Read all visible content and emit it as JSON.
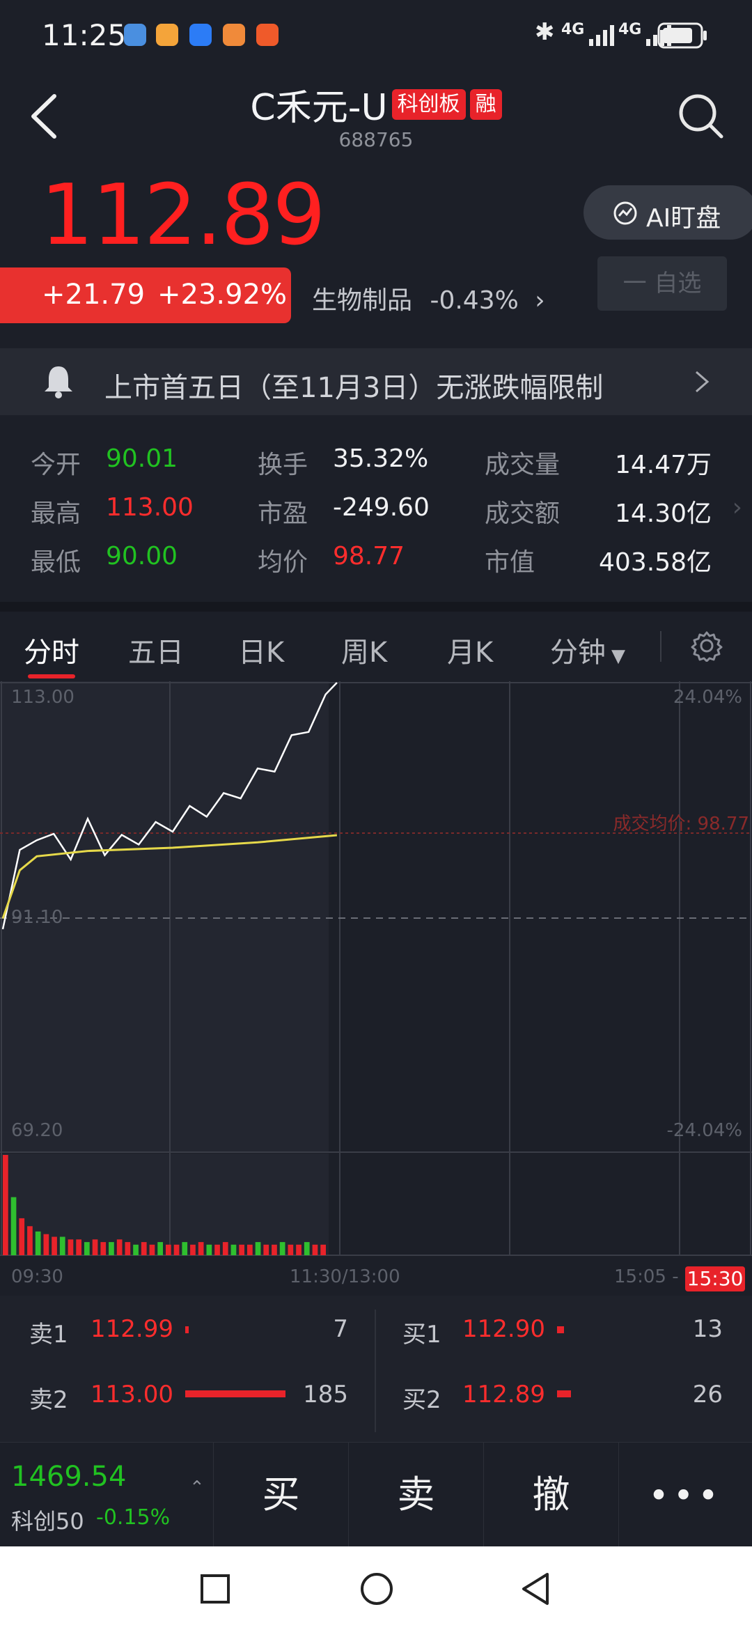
{
  "status_bar": {
    "time": "11:25",
    "network_1": "4G",
    "network_2": "4G"
  },
  "header": {
    "stock_name": "C禾元-U",
    "tag_board": "科创板",
    "tag_margin": "融",
    "stock_code": "688765"
  },
  "quote": {
    "price": "112.89",
    "change": "+21.79",
    "change_pct": "+23.92%",
    "sector_name": "生物制品",
    "sector_change": "-0.43%",
    "ai_button": "AI盯盘",
    "watchlist_button": "一 自选"
  },
  "notice": {
    "text": "上市首五日（至11月3日）无涨跌幅限制"
  },
  "stats": [
    {
      "label": "今开",
      "value": "90.01",
      "color": "green"
    },
    {
      "label": "换手",
      "value": "35.32%",
      "color": "white"
    },
    {
      "label": "成交量",
      "value": "14.47万",
      "color": "white"
    },
    {
      "label": "最高",
      "value": "113.00",
      "color": "red"
    },
    {
      "label": "市盈",
      "value": "-249.60",
      "color": "white"
    },
    {
      "label": "成交额",
      "value": "14.30亿",
      "color": "white"
    },
    {
      "label": "最低",
      "value": "90.00",
      "color": "green"
    },
    {
      "label": "均价",
      "value": "98.77",
      "color": "red"
    },
    {
      "label": "市值",
      "value": "403.58亿",
      "color": "white"
    }
  ],
  "tabs": [
    "分时",
    "五日",
    "日K",
    "周K",
    "月K",
    "分钟"
  ],
  "chart_labels": {
    "y_top": "113.00",
    "y_mid": "91.10",
    "y_bottom": "69.20",
    "pct_top": "24.04%",
    "pct_bottom": "-24.04%",
    "avg_price_label": "成交均价: 98.77",
    "t_start": "09:30",
    "t_mid": "11:30/13:00",
    "t_end": "15:05 -",
    "t_current": "15:30"
  },
  "chart_data": {
    "type": "line",
    "title": "",
    "ylim": [
      69.2,
      113.0
    ],
    "reference_price": 91.1,
    "series": [
      {
        "name": "",
        "color": "#ffffff",
        "x": [
          0,
          6,
          12,
          18,
          24,
          30,
          36,
          42,
          48,
          54,
          60,
          66,
          72,
          78,
          84,
          90,
          96,
          102,
          108,
          114,
          118
        ],
        "y": [
          90.0,
          96.5,
          99.0,
          98.0,
          97.2,
          99.4,
          97.6,
          97.9,
          98.6,
          99.1,
          99.8,
          100.6,
          101.2,
          101.8,
          102.9,
          104.1,
          105.4,
          107.2,
          109.1,
          111.0,
          113.0
        ]
      },
      {
        "name": "成交均价",
        "color": "#e6d94a",
        "x": [
          0,
          6,
          12,
          30,
          60,
          90,
          118
        ],
        "y": [
          91.0,
          95.5,
          96.8,
          97.3,
          97.6,
          98.1,
          98.77
        ]
      }
    ],
    "volume": [
      38,
      22,
      14,
      11,
      9,
      8,
      7,
      7,
      6,
      6,
      5,
      6,
      5,
      5,
      6,
      5,
      4,
      5,
      4,
      5,
      4,
      4,
      5,
      4,
      5,
      4,
      4,
      5,
      4,
      4,
      4,
      5,
      4,
      4,
      5,
      4,
      4,
      5,
      4,
      4
    ]
  },
  "order_book": {
    "sell": [
      {
        "label": "卖1",
        "price": "112.99",
        "qty": "7"
      },
      {
        "label": "卖2",
        "price": "113.00",
        "qty": "185"
      }
    ],
    "buy": [
      {
        "label": "买1",
        "price": "112.90",
        "qty": "13"
      },
      {
        "label": "买2",
        "price": "112.89",
        "qty": "26"
      }
    ]
  },
  "index_ticker": {
    "value": "1469.54",
    "name": "科创50",
    "change": "-0.15%"
  },
  "actions": {
    "buy": "买",
    "sell": "卖",
    "cancel": "撤"
  }
}
